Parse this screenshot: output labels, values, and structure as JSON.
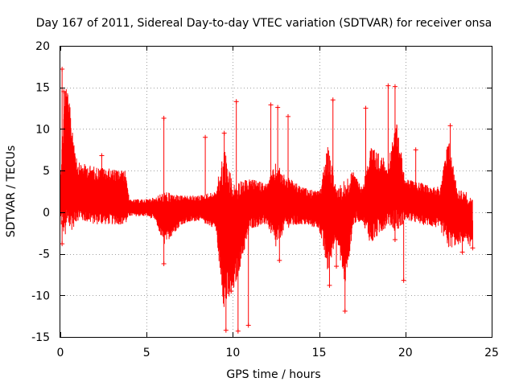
{
  "chart_data": {
    "type": "scatter",
    "title": "Day 167 of 2011, Sidereal Day-to-day VTEC variation (SDTVAR) for receiver onsa",
    "xlabel": "GPS time / hours",
    "ylabel": "SDTVAR / TECUs",
    "xlim": [
      0,
      25
    ],
    "ylim": [
      -15,
      20
    ],
    "xticks": [
      "0",
      "5",
      "10",
      "15",
      "20",
      "25"
    ],
    "yticks": [
      "20",
      "15",
      "10",
      "5",
      "0",
      "-5",
      "-10",
      "-15"
    ],
    "grid": true,
    "color": "#ff0000",
    "marker": "plus",
    "series": [
      {
        "name": "SDTVAR",
        "envelope": {
          "x": [
            0.0,
            0.3,
            1.0,
            2.0,
            3.0,
            3.8,
            4.0,
            5.0,
            5.5,
            6.0,
            7.0,
            8.0,
            9.0,
            9.5,
            10.0,
            11.0,
            12.0,
            12.5,
            13.0,
            14.0,
            15.0,
            15.5,
            16.0,
            16.5,
            17.0,
            17.5,
            18.0,
            19.0,
            19.5,
            20.0,
            21.0,
            22.0,
            22.5,
            23.0,
            23.5,
            23.9
          ],
          "ymax": [
            5.0,
            16.5,
            6.0,
            5.5,
            5.2,
            5.0,
            1.5,
            1.6,
            1.8,
            2.5,
            2.0,
            2.0,
            2.5,
            8.0,
            3.5,
            4.0,
            3.5,
            6.0,
            4.5,
            3.0,
            2.5,
            8.0,
            3.0,
            4.0,
            5.0,
            3.0,
            8.0,
            6.0,
            11.0,
            4.0,
            3.5,
            3.0,
            9.0,
            3.0,
            2.5,
            1.5
          ],
          "ymin": [
            -1.5,
            -3.5,
            -1.0,
            -1.5,
            -1.5,
            -1.5,
            -0.5,
            -0.5,
            -1.0,
            -4.0,
            -1.5,
            -1.0,
            -2.0,
            -12.0,
            -10.0,
            -2.0,
            -1.5,
            -4.5,
            -2.0,
            -1.5,
            -2.0,
            -7.5,
            -3.0,
            -9.0,
            -1.5,
            -1.0,
            -4.0,
            -1.5,
            -2.5,
            -1.0,
            -1.5,
            -2.0,
            -4.5,
            -4.0,
            -3.5,
            -4.5
          ]
        },
        "spikes": [
          {
            "x": 0.1,
            "y": 17.2
          },
          {
            "x": 0.2,
            "y": 14.5
          },
          {
            "x": 0.1,
            "y": -3.8
          },
          {
            "x": 2.4,
            "y": 6.8
          },
          {
            "x": 6.0,
            "y": 11.3
          },
          {
            "x": 6.0,
            "y": -6.2
          },
          {
            "x": 8.4,
            "y": 9.0
          },
          {
            "x": 9.5,
            "y": 9.5
          },
          {
            "x": 9.6,
            "y": -14.2
          },
          {
            "x": 9.9,
            "y": -9.5
          },
          {
            "x": 10.3,
            "y": -14.3
          },
          {
            "x": 10.2,
            "y": 13.3
          },
          {
            "x": 10.9,
            "y": -13.6
          },
          {
            "x": 12.2,
            "y": 12.9
          },
          {
            "x": 12.6,
            "y": 12.6
          },
          {
            "x": 12.7,
            "y": -5.8
          },
          {
            "x": 13.2,
            "y": 11.5
          },
          {
            "x": 15.6,
            "y": -8.8
          },
          {
            "x": 15.8,
            "y": 13.5
          },
          {
            "x": 16.5,
            "y": -11.9
          },
          {
            "x": 16.0,
            "y": -6.5
          },
          {
            "x": 17.7,
            "y": 12.5
          },
          {
            "x": 19.0,
            "y": 15.2
          },
          {
            "x": 19.4,
            "y": 15.1
          },
          {
            "x": 19.4,
            "y": -3.3
          },
          {
            "x": 19.9,
            "y": -8.2
          },
          {
            "x": 20.6,
            "y": 7.5
          },
          {
            "x": 22.6,
            "y": 10.4
          },
          {
            "x": 23.3,
            "y": -4.8
          },
          {
            "x": 23.9,
            "y": -4.3
          }
        ]
      }
    ]
  }
}
